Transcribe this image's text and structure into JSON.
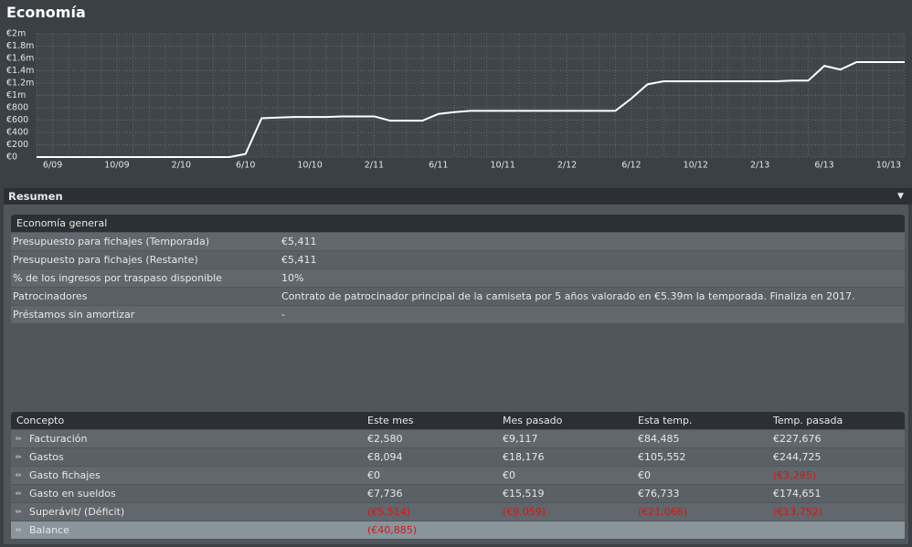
{
  "header": {
    "title": "Economía"
  },
  "chart_data": {
    "type": "line",
    "categories": [
      null,
      "6/09",
      null,
      null,
      null,
      "10/09",
      null,
      null,
      null,
      "2/10",
      null,
      null,
      null,
      "6/10",
      null,
      null,
      null,
      "10/10",
      null,
      null,
      null,
      "2/11",
      null,
      null,
      null,
      "6/11",
      null,
      null,
      null,
      "10/11",
      null,
      null,
      null,
      "2/12",
      null,
      null,
      null,
      "6/12",
      null,
      null,
      null,
      "10/12",
      null,
      null,
      null,
      "2/13",
      null,
      null,
      null,
      "6/13",
      null,
      null,
      null,
      "10/13",
      null
    ],
    "values": [
      0,
      0,
      0,
      0,
      0,
      0,
      0,
      0,
      0,
      0,
      0,
      0,
      0,
      50,
      630,
      640,
      650,
      650,
      650,
      660,
      660,
      660,
      590,
      590,
      590,
      700,
      730,
      750,
      750,
      750,
      750,
      750,
      750,
      750,
      750,
      750,
      750,
      950,
      1180,
      1230,
      1230,
      1230,
      1230,
      1230,
      1230,
      1230,
      1230,
      1240,
      1240,
      1480,
      1420,
      1540,
      1540,
      1540,
      1540
    ],
    "color": "#ffffff",
    "ylim": [
      0,
      2000
    ],
    "yticks": [
      {
        "value": 0,
        "label": "€0"
      },
      {
        "value": 200,
        "label": "€200"
      },
      {
        "value": 400,
        "label": "€400"
      },
      {
        "value": 600,
        "label": "€600"
      },
      {
        "value": 800,
        "label": "€800"
      },
      {
        "value": 1000,
        "label": "€1m"
      },
      {
        "value": 1200,
        "label": "€1.2m"
      },
      {
        "value": 1400,
        "label": "€1.4m"
      },
      {
        "value": 1600,
        "label": "€1.6m"
      },
      {
        "value": 1800,
        "label": "€1.8m"
      },
      {
        "value": 2000,
        "label": "€2m"
      }
    ],
    "grid": true
  },
  "section": {
    "title": "Resumen"
  },
  "general": {
    "title": "Economía general",
    "rows": [
      [
        "Presupuesto para fichajes (Temporada)",
        "€5,411"
      ],
      [
        "Presupuesto para fichajes (Restante)",
        "€5,411"
      ],
      [
        "% de los ingresos por traspaso disponible",
        "10%"
      ],
      [
        "Patrocinadores",
        "Contrato de patrocinador principal de la camiseta por 5 años valorado en €5.39m la temporada. Finaliza en 2017."
      ],
      [
        "Préstamos sin amortizar",
        "-"
      ]
    ]
  },
  "concepts": {
    "columns": [
      "Concepto",
      "Este mes",
      "Mes pasado",
      "Esta temp.",
      "Temp. pasada"
    ],
    "rows": [
      [
        "Facturación",
        "€2,580",
        "€9,117",
        "€84,485",
        "€227,676"
      ],
      [
        "Gastos",
        "€8,094",
        "€18,176",
        "€105,552",
        "€244,725"
      ],
      [
        "Gasto fichajes",
        "€0",
        "€0",
        "€0",
        "(€3,295)"
      ],
      [
        "Gasto en sueldos",
        "€7,736",
        "€15,519",
        "€76,733",
        "€174,651"
      ],
      [
        "Superávit/ (Déficit)",
        "(€5,514)",
        "(€9,059)",
        "(€21,066)",
        "(€13,752)"
      ],
      [
        "Balance",
        "(€40,885)"
      ]
    ]
  }
}
